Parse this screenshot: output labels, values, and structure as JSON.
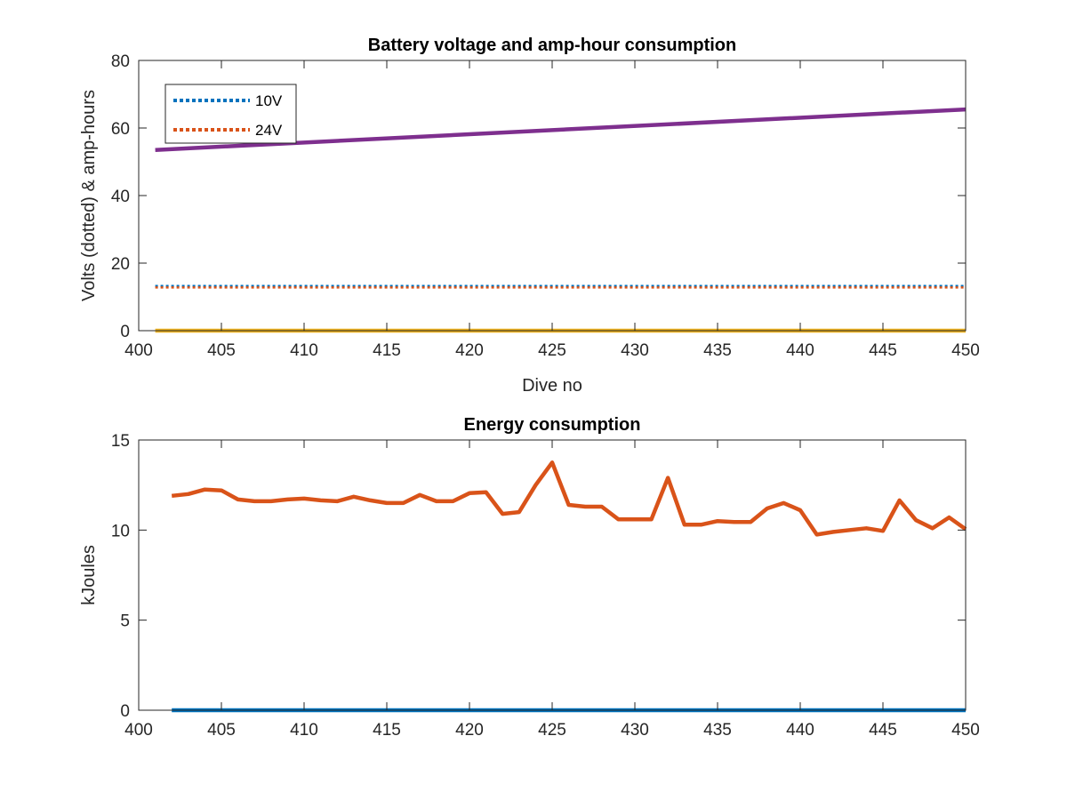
{
  "chart_data": [
    {
      "type": "line",
      "title": "Battery voltage and amp-hour consumption",
      "xlabel": "Dive no",
      "ylabel": "Volts (dotted) & amp-hours",
      "xlim": [
        400,
        450
      ],
      "ylim": [
        0,
        80
      ],
      "xticks": [
        400,
        405,
        410,
        415,
        420,
        425,
        430,
        435,
        440,
        445,
        450
      ],
      "yticks": [
        0,
        20,
        40,
        60,
        80
      ],
      "grid": false,
      "legend_position": "top-left",
      "series": [
        {
          "name": "10V",
          "style": "dotted",
          "color": "#0072BD",
          "x": [
            401,
            450
          ],
          "y": [
            13.2,
            13.2
          ],
          "in_legend": true
        },
        {
          "name": "24V",
          "style": "dotted",
          "color": "#D95319",
          "x": [
            401,
            450
          ],
          "y": [
            12.8,
            12.8
          ],
          "in_legend": true
        },
        {
          "name": "",
          "style": "solid",
          "color": "#EDB120",
          "x": [
            401,
            450
          ],
          "y": [
            0,
            0
          ],
          "in_legend": false
        },
        {
          "name": "",
          "style": "solid",
          "color": "#7E2F8E",
          "x": [
            401,
            450
          ],
          "y": [
            53.5,
            65.5
          ],
          "in_legend": false
        }
      ]
    },
    {
      "type": "line",
      "title": "Energy consumption",
      "xlabel": "",
      "ylabel": "kJoules",
      "xlim": [
        400,
        450
      ],
      "ylim": [
        0,
        15
      ],
      "xticks": [
        400,
        405,
        410,
        415,
        420,
        425,
        430,
        435,
        440,
        445,
        450
      ],
      "yticks": [
        0,
        5,
        10,
        15
      ],
      "grid": false,
      "series": [
        {
          "name": "",
          "style": "solid",
          "color": "#0072BD",
          "x": [
            402,
            450
          ],
          "y": [
            0,
            0
          ]
        },
        {
          "name": "",
          "style": "solid",
          "color": "#D95319",
          "x": [
            402,
            403,
            404,
            405,
            406,
            407,
            408,
            409,
            410,
            411,
            412,
            413,
            414,
            415,
            416,
            417,
            418,
            419,
            420,
            421,
            422,
            423,
            424,
            425,
            426,
            427,
            428,
            429,
            430,
            431,
            432,
            433,
            434,
            435,
            436,
            437,
            438,
            439,
            440,
            441,
            442,
            443,
            444,
            445,
            446,
            447,
            448,
            449,
            450
          ],
          "y": [
            11.9,
            12.0,
            12.25,
            12.2,
            11.7,
            11.6,
            11.6,
            11.7,
            11.75,
            11.65,
            11.6,
            11.85,
            11.65,
            11.5,
            11.5,
            11.95,
            11.6,
            11.6,
            12.05,
            12.1,
            10.9,
            11.0,
            12.5,
            13.75,
            11.4,
            11.3,
            11.3,
            10.6,
            10.6,
            10.6,
            12.9,
            10.3,
            10.3,
            10.5,
            10.45,
            10.45,
            11.2,
            11.5,
            11.1,
            9.75,
            9.9,
            10.0,
            10.1,
            9.95,
            11.65,
            10.55,
            10.1,
            10.7,
            10.05
          ]
        }
      ]
    }
  ]
}
